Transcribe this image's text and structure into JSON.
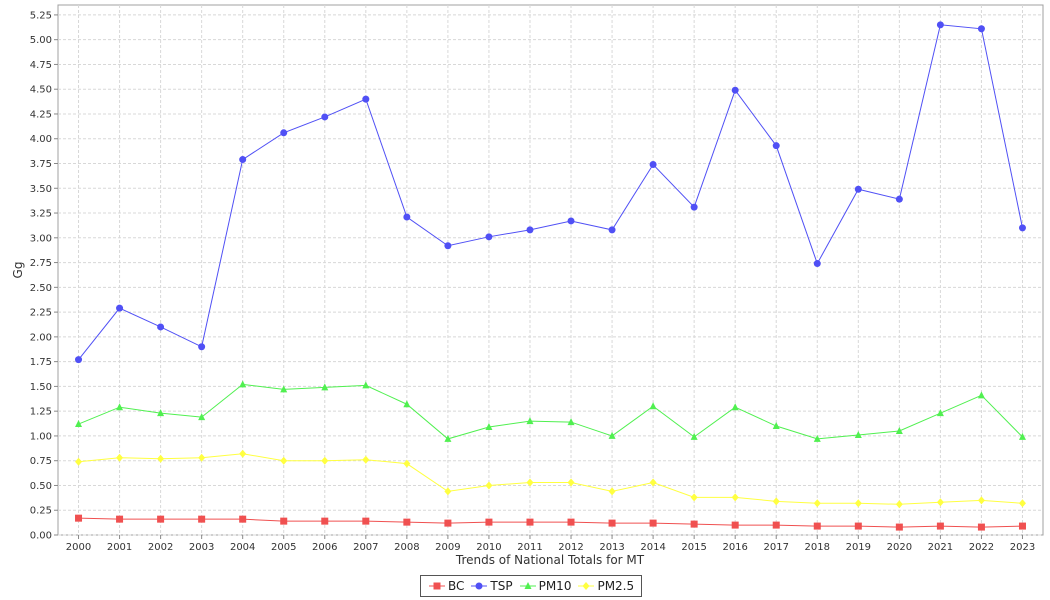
{
  "chart_data": {
    "type": "line",
    "title": "",
    "xlabel": "Trends of National Totals for MT",
    "ylabel": "Gg",
    "ylim": [
      0,
      5.35
    ],
    "ytick_step": 0.25,
    "grid": true,
    "legend_position": "bottom-center",
    "x": [
      "2000",
      "2001",
      "2002",
      "2003",
      "2004",
      "2005",
      "2006",
      "2007",
      "2008",
      "2009",
      "2010",
      "2011",
      "2012",
      "2013",
      "2014",
      "2015",
      "2016",
      "2017",
      "2018",
      "2019",
      "2020",
      "2021",
      "2022",
      "2023"
    ],
    "series": [
      {
        "name": "BC",
        "color": "#f05050",
        "marker": "square",
        "values": [
          0.17,
          0.16,
          0.16,
          0.16,
          0.16,
          0.14,
          0.14,
          0.14,
          0.13,
          0.12,
          0.13,
          0.13,
          0.13,
          0.12,
          0.12,
          0.11,
          0.1,
          0.1,
          0.09,
          0.09,
          0.08,
          0.09,
          0.08,
          0.09
        ]
      },
      {
        "name": "TSP",
        "color": "#5050f5",
        "marker": "circle",
        "values": [
          1.77,
          2.29,
          2.1,
          1.9,
          3.79,
          4.06,
          4.22,
          4.4,
          3.21,
          2.92,
          3.01,
          3.08,
          3.17,
          3.08,
          3.74,
          3.31,
          4.49,
          3.93,
          2.74,
          3.49,
          3.39,
          5.15,
          5.11,
          3.1
        ]
      },
      {
        "name": "PM10",
        "color": "#50f050",
        "marker": "triangle",
        "values": [
          1.12,
          1.29,
          1.23,
          1.19,
          1.52,
          1.47,
          1.49,
          1.51,
          1.32,
          0.97,
          1.09,
          1.15,
          1.14,
          1.0,
          1.3,
          0.99,
          1.29,
          1.1,
          0.97,
          1.01,
          1.05,
          1.23,
          1.41,
          0.99
        ]
      },
      {
        "name": "PM2.5",
        "color": "#ffff40",
        "marker": "diamond",
        "values": [
          0.74,
          0.78,
          0.77,
          0.78,
          0.82,
          0.75,
          0.75,
          0.76,
          0.72,
          0.44,
          0.5,
          0.53,
          0.53,
          0.44,
          0.53,
          0.38,
          0.38,
          0.34,
          0.32,
          0.32,
          0.31,
          0.33,
          0.35,
          0.32
        ]
      }
    ]
  }
}
